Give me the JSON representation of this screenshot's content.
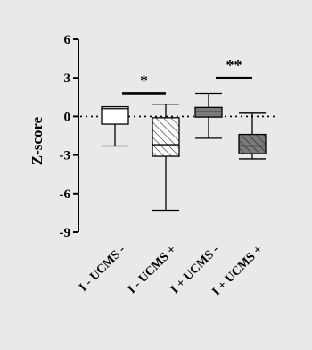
{
  "chart_data": {
    "type": "box",
    "title": "",
    "ylabel": "Z-score",
    "xlabel": "",
    "ylim": [
      -9,
      6
    ],
    "yticks": [
      6,
      3,
      0,
      -3,
      -6,
      -9
    ],
    "reference_line_y": 0,
    "categories": [
      "I - UCMS -",
      "I - UCMS +",
      "I + UCMS -",
      "I + UCMS +"
    ],
    "boxes": [
      {
        "name": "I - UCMS -",
        "min": -2.3,
        "q1": -0.6,
        "median": 0.6,
        "q3": 0.75,
        "max": 0.75,
        "fill": "white"
      },
      {
        "name": "I - UCMS +",
        "min": -7.3,
        "q1": -3.1,
        "median": -2.2,
        "q3": -0.1,
        "max": 0.95,
        "fill": "hatched"
      },
      {
        "name": "I + UCMS -",
        "min": -1.7,
        "q1": -0.05,
        "median": 0.35,
        "q3": 0.7,
        "max": 1.8,
        "fill": "dark-grey"
      },
      {
        "name": "I + UCMS +",
        "min": -3.3,
        "q1": -2.9,
        "median": -2.3,
        "q3": -1.4,
        "max": 0.25,
        "fill": "dark-grey-hatched"
      }
    ],
    "significance": [
      {
        "label": "*",
        "from": 0,
        "to": 1,
        "y": 1.8
      },
      {
        "label": "**",
        "from": 2,
        "to": 3,
        "y": 3.0
      }
    ],
    "colors": {
      "background": "#e9e9e9",
      "dark_box": "#7a7a7a",
      "white_box": "#ffffff"
    }
  }
}
